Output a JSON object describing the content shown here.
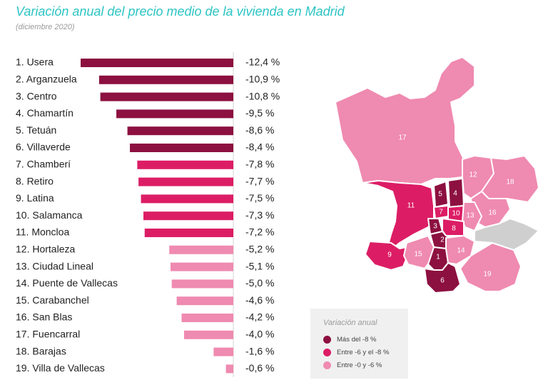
{
  "title": "Variación anual del precio medio de la vivienda en Madrid",
  "subtitle": "(diciembre 2020)",
  "colors": {
    "title": "#2ec4c4",
    "dark": "#8c1040",
    "mid": "#dc1d65",
    "light": "#ef8ab0",
    "nodata": "#cfcfcf"
  },
  "chart_data": {
    "type": "bar",
    "orientation": "horizontal",
    "categories": [
      "1. Usera",
      "2. Arganzuela",
      "3. Centro",
      "4. Chamartín",
      "5. Tetuán",
      "6. Villaverde",
      "7. Chamberí",
      "8. Retiro",
      "9. Latina",
      "10. Salamanca",
      "11. Moncloa",
      "12. Hortaleza",
      "13. Ciudad Lineal",
      "14. Puente de Vallecas",
      "15. Carabanchel",
      "16. San Blas",
      "17. Fuencarral",
      "18. Barajas",
      "19. Villa de Vallecas"
    ],
    "values": [
      -12.4,
      -10.9,
      -10.8,
      -9.5,
      -8.6,
      -8.4,
      -7.8,
      -7.7,
      -7.5,
      -7.3,
      -7.2,
      -5.2,
      -5.1,
      -5.0,
      -4.6,
      -4.2,
      -4.0,
      -1.6,
      -0.6
    ],
    "value_labels": [
      "-12,4 %",
      "-10,9 %",
      "-10,8 %",
      "-9,5 %",
      "-8,6 %",
      "-8,4 %",
      "-7,8 %",
      "-7,7 %",
      "-7,5 %",
      "-7,3 %",
      "-7,2 %",
      "-5,2 %",
      "-5,1 %",
      "-5,0 %",
      "-4,6 %",
      "-4,2 %",
      "-4,0 %",
      "-1,6 %",
      "-0,6 %"
    ],
    "xlim": [
      -12.4,
      0
    ],
    "grid": false
  },
  "map": {
    "districts": [
      {
        "id": "17",
        "label": "17",
        "class": "light"
      },
      {
        "id": "12",
        "label": "12",
        "class": "light"
      },
      {
        "id": "18",
        "label": "18",
        "class": "light"
      },
      {
        "id": "16",
        "label": "16",
        "class": "light"
      },
      {
        "id": "11",
        "label": "11",
        "class": "mid"
      },
      {
        "id": "5",
        "label": "5",
        "class": "dark"
      },
      {
        "id": "4",
        "label": "4",
        "class": "dark"
      },
      {
        "id": "7",
        "label": "7",
        "class": "mid"
      },
      {
        "id": "10",
        "label": "10",
        "class": "mid"
      },
      {
        "id": "13",
        "label": "13",
        "class": "light"
      },
      {
        "id": "3",
        "label": "3",
        "class": "dark"
      },
      {
        "id": "8",
        "label": "8",
        "class": "mid"
      },
      {
        "id": "2",
        "label": "2",
        "class": "dark"
      },
      {
        "id": "9",
        "label": "9",
        "class": "mid"
      },
      {
        "id": "15",
        "label": "15",
        "class": "light"
      },
      {
        "id": "1",
        "label": "1",
        "class": "dark"
      },
      {
        "id": "14",
        "label": "14",
        "class": "light"
      },
      {
        "id": "19",
        "label": "19",
        "class": "light"
      },
      {
        "id": "6",
        "label": "6",
        "class": "dark"
      },
      {
        "id": "gray",
        "label": "",
        "class": "nodata"
      }
    ]
  },
  "legend": {
    "title": "Variación anual",
    "items": [
      {
        "label": "Más del -8 %",
        "color": "#8c1040"
      },
      {
        "label": "Entre -6 y el -8 %",
        "color": "#dc1d65"
      },
      {
        "label": "Entre -0 y -6 %",
        "color": "#ef8ab0"
      }
    ]
  }
}
